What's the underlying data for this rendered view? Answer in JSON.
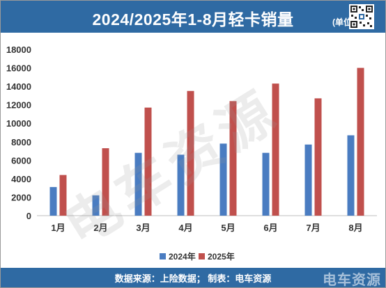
{
  "header": {
    "title": "2024/2025年1-8月轻卡销量",
    "unit": "(单位：辆"
  },
  "footer": {
    "source": "数据来源：上险数据；  制表：电车资源",
    "brand": "电车资源"
  },
  "watermark": "电车资源",
  "colors": {
    "header_bg": "#2f6aa3",
    "series_2024": "#4a7cc1",
    "series_2025": "#c0504d"
  },
  "chart_data": {
    "type": "bar",
    "categories": [
      "1月",
      "2月",
      "3月",
      "4月",
      "5月",
      "6月",
      "7月",
      "8月"
    ],
    "series": [
      {
        "name": "2024年",
        "values": [
          3100,
          2200,
          6800,
          6600,
          7800,
          6800,
          7700,
          8700
        ]
      },
      {
        "name": "2025年",
        "values": [
          4400,
          7300,
          11700,
          13500,
          12400,
          14300,
          12700,
          16000
        ]
      }
    ],
    "ylim": [
      0,
      18000
    ],
    "yticks": [
      0,
      2000,
      4000,
      6000,
      8000,
      10000,
      12000,
      14000,
      16000,
      18000
    ],
    "grid": false,
    "legend": "bottom",
    "title": "2024/2025年1-8月轻卡销量",
    "xlabel": "",
    "ylabel": ""
  }
}
